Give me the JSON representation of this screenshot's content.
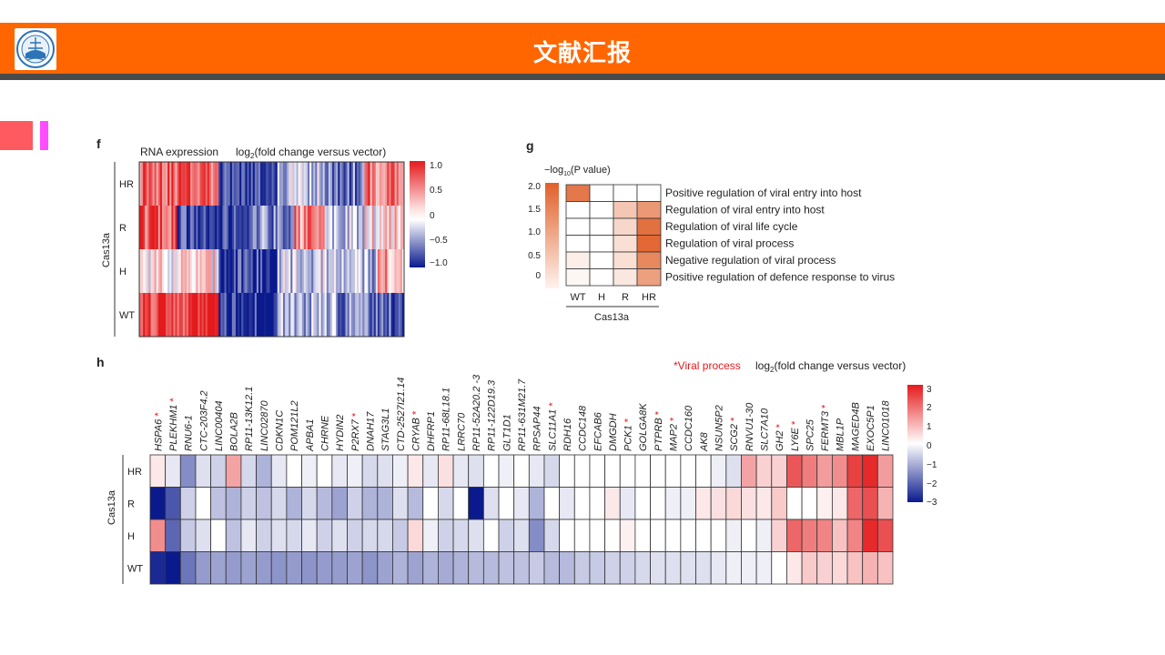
{
  "header": {
    "title": "文献汇报",
    "logo_icon": "university-emblem-icon"
  },
  "colors": {
    "header_bg": "#ff6600",
    "header_line": "#4a4a4a",
    "accent_red": "#ff5a5f",
    "accent_pink": "#ff4dff"
  },
  "figure": {
    "panel_f": {
      "panel_label": "f",
      "title": "RNA expression",
      "title2_pre": "log",
      "title2_sub": "2",
      "title2_post": "(fold change versus vector)",
      "group_label": "Cas13a",
      "rows": [
        "HR",
        "R",
        "H",
        "WT"
      ],
      "scale_ticks": [
        "1.0",
        "0.5",
        "0",
        "−0.5",
        "−1.0"
      ]
    },
    "panel_g": {
      "panel_label": "g",
      "scale_title_pre": "−log",
      "scale_title_sub": "10",
      "scale_title_post": "(P value)",
      "scale_ticks": [
        "2.0",
        "1.5",
        "1.0",
        "0.5",
        "0"
      ],
      "columns": [
        "WT",
        "H",
        "R",
        "HR"
      ],
      "group_label": "Cas13a",
      "terms": [
        "Positive regulation of viral entry into host",
        "Regulation of viral entry into host",
        "Regulation of viral life cycle",
        "Regulation of viral process",
        "Negative regulation of viral process",
        "Positive regulation of defence response to virus"
      ]
    },
    "panel_h": {
      "panel_label": "h",
      "legend_viral": "*Viral process",
      "legend_pre": "log",
      "legend_sub": "2",
      "legend_post": "(fold change versus vector)",
      "group_label": "Cas13a",
      "rows": [
        "HR",
        "R",
        "H",
        "WT"
      ],
      "scale_ticks": [
        "3",
        "2",
        "1",
        "0",
        "−1",
        "−2",
        "−3"
      ],
      "genes": [
        {
          "name": "HSPA6",
          "star": true
        },
        {
          "name": "PLEKHM1",
          "star": true
        },
        {
          "name": "RNU6-1",
          "star": false
        },
        {
          "name": "CTC-203F4.2",
          "star": false
        },
        {
          "name": "LINC00404",
          "star": false
        },
        {
          "name": "BOLA2B",
          "star": false
        },
        {
          "name": "RP11-13K12.1",
          "star": false
        },
        {
          "name": "LINC02870",
          "star": false
        },
        {
          "name": "CDKN1C",
          "star": false
        },
        {
          "name": "POM121L2",
          "star": false
        },
        {
          "name": "APBA1",
          "star": false
        },
        {
          "name": "CHRNE",
          "star": false
        },
        {
          "name": "HYDIN2",
          "star": false
        },
        {
          "name": "P2RX7",
          "star": true
        },
        {
          "name": "DNAH17",
          "star": false
        },
        {
          "name": "STAG3L1",
          "star": false
        },
        {
          "name": "CTD-2527I21.14",
          "star": false
        },
        {
          "name": "CRYAB",
          "star": true
        },
        {
          "name": "DHFRP1",
          "star": false
        },
        {
          "name": "RP11-68L18.1",
          "star": false
        },
        {
          "name": "LRRC70",
          "star": false
        },
        {
          "name": "RP11-52A20.2 -3",
          "star": false
        },
        {
          "name": "RP11-122D19.3",
          "star": false
        },
        {
          "name": "GLT1D1",
          "star": false
        },
        {
          "name": "RP11-631M21.7",
          "star": false
        },
        {
          "name": "RPSAP44",
          "star": false
        },
        {
          "name": "SLC11A1",
          "star": true
        },
        {
          "name": "RDH16",
          "star": false
        },
        {
          "name": "CCDC148",
          "star": false
        },
        {
          "name": "EFCAB6",
          "star": false
        },
        {
          "name": "DMGDH",
          "star": false
        },
        {
          "name": "PCK1",
          "star": true
        },
        {
          "name": "GOLGA8K",
          "star": false
        },
        {
          "name": "PTPRB",
          "star": true
        },
        {
          "name": "MAP2",
          "star": true
        },
        {
          "name": "CCDC160",
          "star": false
        },
        {
          "name": "AK8",
          "star": false
        },
        {
          "name": "NSUN5P2",
          "star": false
        },
        {
          "name": "SCG2",
          "star": true
        },
        {
          "name": "RNVU1-30",
          "star": false
        },
        {
          "name": "SLC7A10",
          "star": false
        },
        {
          "name": "GH2",
          "star": true
        },
        {
          "name": "LY6E",
          "star": true
        },
        {
          "name": "SPC25",
          "star": false
        },
        {
          "name": "FERMT3",
          "star": true
        },
        {
          "name": "MBL1P",
          "star": false
        },
        {
          "name": "MAGED4B",
          "star": false
        },
        {
          "name": "EXOC5P1",
          "star": false
        },
        {
          "name": "LINC01018",
          "star": false
        }
      ]
    }
  },
  "chart_data": [
    {
      "type": "heatmap",
      "panel": "g",
      "title": "",
      "rows": [
        "Positive regulation of viral entry into host",
        "Regulation of viral entry into host",
        "Regulation of viral life cycle",
        "Regulation of viral process",
        "Negative regulation of viral process",
        "Positive regulation of defence response to virus"
      ],
      "columns": [
        "WT",
        "H",
        "R",
        "HR"
      ],
      "xlabel": "Cas13a",
      "colorbar": "−log10(P value)",
      "range": [
        0,
        2.0
      ],
      "values": [
        [
          1.7,
          0.0,
          0.0,
          0.0
        ],
        [
          0.0,
          0.0,
          0.7,
          1.3
        ],
        [
          0.0,
          0.0,
          0.5,
          1.8
        ],
        [
          0.0,
          0.0,
          0.4,
          1.9
        ],
        [
          0.2,
          0.0,
          0.4,
          1.5
        ],
        [
          0.1,
          0.0,
          0.3,
          1.2
        ]
      ]
    },
    {
      "type": "heatmap",
      "panel": "h",
      "title": "",
      "rows": [
        "HR",
        "R",
        "H",
        "WT"
      ],
      "columns": [
        "HSPA6",
        "PLEKHM1",
        "RNU6-1",
        "CTC-203F4.2",
        "LINC00404",
        "BOLA2B",
        "RP11-13K12.1",
        "LINC02870",
        "CDKN1C",
        "POM121L2",
        "APBA1",
        "CHRNE",
        "HYDIN2",
        "P2RX7",
        "DNAH17",
        "STAG3L1",
        "CTD-2527I21.14",
        "CRYAB",
        "DHFRP1",
        "RP11-68L18.1",
        "LRRC70",
        "RP11-52A20.2 -3",
        "RP11-122D19.3",
        "GLT1D1",
        "RP11-631M21.7",
        "RPSAP44",
        "SLC11A1",
        "RDH16",
        "CCDC148",
        "EFCAB6",
        "DMGDH",
        "PCK1",
        "GOLGA8K",
        "PTPRB",
        "MAP2",
        "CCDC160",
        "AK8",
        "NSUN5P2",
        "SCG2",
        "RNVU1-30",
        "SLC7A10",
        "GH2",
        "LY6E",
        "SPC25",
        "FERMT3",
        "MBL1P",
        "MAGED4B",
        "EXOC5P1",
        "LINC01018"
      ],
      "ylabel": "Cas13a",
      "colorbar": "log2(fold change versus vector)",
      "range": [
        -3,
        3
      ],
      "values": [
        [
          0.3,
          -0.3,
          -1.5,
          -0.4,
          -0.6,
          1.2,
          -0.5,
          -1.0,
          -0.3,
          0,
          -0.2,
          0,
          -0.3,
          -0.2,
          -0.5,
          -0.4,
          -0.2,
          0.3,
          -0.3,
          0.4,
          -0.3,
          -0.4,
          0,
          -0.2,
          0,
          -0.3,
          -0.5,
          0,
          0,
          0,
          0,
          0,
          0,
          0,
          0,
          0,
          0,
          -0.2,
          -0.4,
          1.2,
          0.6,
          0.6,
          2.2,
          1.7,
          1.3,
          1.5,
          2.5,
          2.8,
          1.3
        ],
        [
          -3,
          -2.2,
          -0.6,
          0,
          -0.8,
          -1.0,
          -0.6,
          -0.8,
          -0.5,
          -1.0,
          -0.5,
          -0.9,
          -1.2,
          -0.6,
          -1.0,
          -1.0,
          -0.4,
          -0.9,
          0,
          -0.5,
          0,
          -3,
          -0.4,
          0,
          -0.3,
          -1.0,
          0,
          -0.3,
          0,
          0,
          0.3,
          -0.3,
          0,
          0,
          -0.2,
          -0.2,
          0.3,
          0.4,
          0.5,
          0.4,
          0.3,
          0.7,
          0,
          0,
          0.2,
          0.3,
          2.0,
          2.3,
          1.0
        ],
        [
          1.5,
          -2.0,
          -0.7,
          -0.4,
          0,
          -0.8,
          -0.3,
          -0.6,
          -0.4,
          -0.5,
          -0.3,
          -0.6,
          -0.4,
          -0.6,
          -0.5,
          -0.5,
          -0.7,
          0.5,
          -0.2,
          -0.6,
          -0.5,
          -0.4,
          0,
          -0.6,
          -0.4,
          -1.5,
          -0.5,
          0,
          0,
          0,
          0,
          0.2,
          0,
          0,
          0,
          0,
          0,
          0,
          -0.2,
          0,
          -0.2,
          0.6,
          2.0,
          1.7,
          1.6,
          0.8,
          1.6,
          2.8,
          2.3
        ],
        [
          -2.8,
          -3,
          -1.8,
          -1.3,
          -1.2,
          -1.3,
          -1.2,
          -1.3,
          -1.4,
          -1.3,
          -1.4,
          -1.3,
          -1.3,
          -1.2,
          -1.4,
          -1.2,
          -1.0,
          -1.2,
          -1.0,
          -1.1,
          -1.0,
          -0.9,
          -0.9,
          -0.8,
          -0.8,
          -0.7,
          -0.9,
          -0.9,
          -0.7,
          -0.7,
          -0.6,
          -0.6,
          -0.5,
          -0.4,
          -0.4,
          -0.4,
          -0.4,
          -0.3,
          -0.2,
          -0.2,
          -0.2,
          0,
          0.3,
          0.7,
          0.6,
          0.5,
          0.8,
          1.0,
          0.8
        ]
      ]
    }
  ]
}
